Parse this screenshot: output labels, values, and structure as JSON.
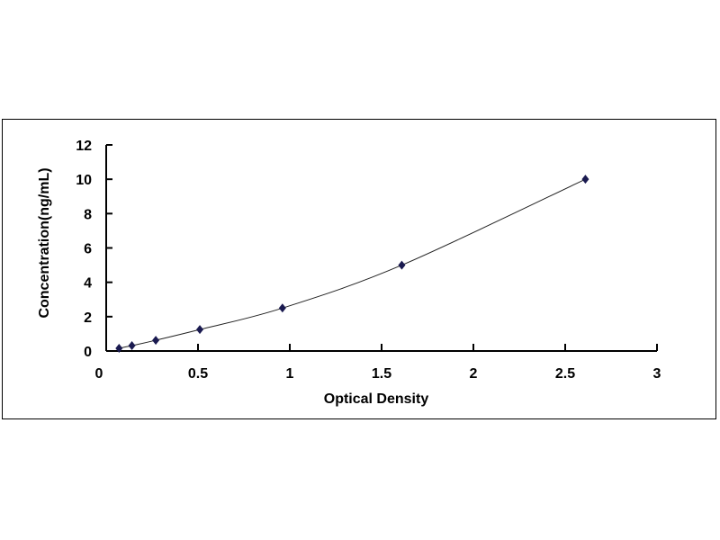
{
  "chart_data": {
    "type": "scatter",
    "title": "",
    "xlabel": "Optical Density",
    "ylabel": "Concentration(ng/mL)",
    "xlim": [
      0,
      3
    ],
    "ylim": [
      0,
      12
    ],
    "xticks": [
      "0",
      "0.5",
      "1",
      "1.5",
      "2",
      "2.5",
      "3"
    ],
    "yticks": [
      "0",
      "2",
      "4",
      "6",
      "8",
      "10",
      "12"
    ],
    "grid": false,
    "series": [
      {
        "x": [
          0.07,
          0.14,
          0.27,
          0.51,
          0.96,
          1.61,
          2.61
        ],
        "y": [
          0.156,
          0.312,
          0.625,
          1.25,
          2.5,
          5,
          10
        ],
        "marker": "diamond",
        "color": "#1a1a50",
        "line": "smooth"
      }
    ]
  }
}
